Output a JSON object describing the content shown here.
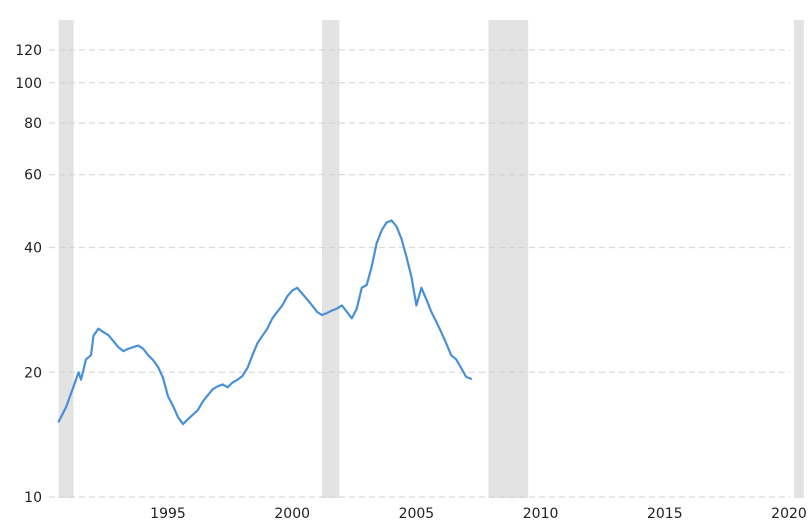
{
  "chart_data": {
    "type": "line",
    "title": "",
    "xlabel": "",
    "ylabel": "",
    "y_scale": "log",
    "xlim": [
      1990.6,
      2020.6
    ],
    "ylim": [
      10,
      135
    ],
    "grid": "horizontal dashed",
    "y_ticks": [
      {
        "value": 10,
        "label": "10"
      },
      {
        "value": 20,
        "label": "20"
      },
      {
        "value": 40,
        "label": "40"
      },
      {
        "value": 60,
        "label": "60"
      },
      {
        "value": 80,
        "label": "80"
      },
      {
        "value": 100,
        "label": "100"
      },
      {
        "value": 120,
        "label": "120"
      }
    ],
    "x_ticks": [
      {
        "value": 1995,
        "label": "1995"
      },
      {
        "value": 2000,
        "label": "2000"
      },
      {
        "value": 2005,
        "label": "2005"
      },
      {
        "value": 2010,
        "label": "2010"
      },
      {
        "value": 2015,
        "label": "2015"
      },
      {
        "value": 2020,
        "label": "2020"
      }
    ],
    "recessions": [
      {
        "start": 1990.6,
        "end": 1991.2
      },
      {
        "start": 2001.2,
        "end": 2001.9
      },
      {
        "start": 2007.9,
        "end": 2009.5
      },
      {
        "start": 2020.2,
        "end": 2020.6
      }
    ],
    "colors": {
      "line": "#4a90d6",
      "recession": "#e3e3e3",
      "grid": "#d2d2d2"
    },
    "series": [
      {
        "values": [
          [
            1990.6,
            15.2
          ],
          [
            1990.9,
            16.5
          ],
          [
            1991.2,
            18.5
          ],
          [
            1991.4,
            20.0
          ],
          [
            1991.5,
            19.2
          ],
          [
            1991.7,
            21.5
          ],
          [
            1991.9,
            22.0
          ],
          [
            1992.0,
            24.5
          ],
          [
            1992.2,
            25.5
          ],
          [
            1992.4,
            25.0
          ],
          [
            1992.6,
            24.6
          ],
          [
            1992.8,
            23.8
          ],
          [
            1993.0,
            23.0
          ],
          [
            1993.2,
            22.5
          ],
          [
            1993.4,
            22.8
          ],
          [
            1993.6,
            23.0
          ],
          [
            1993.8,
            23.2
          ],
          [
            1994.0,
            22.8
          ],
          [
            1994.2,
            22.0
          ],
          [
            1994.4,
            21.4
          ],
          [
            1994.6,
            20.6
          ],
          [
            1994.8,
            19.4
          ],
          [
            1995.0,
            17.5
          ],
          [
            1995.2,
            16.6
          ],
          [
            1995.4,
            15.6
          ],
          [
            1995.6,
            15.0
          ],
          [
            1995.8,
            15.4
          ],
          [
            1996.0,
            15.8
          ],
          [
            1996.2,
            16.2
          ],
          [
            1996.4,
            17.0
          ],
          [
            1996.6,
            17.6
          ],
          [
            1996.8,
            18.2
          ],
          [
            1997.0,
            18.5
          ],
          [
            1997.2,
            18.7
          ],
          [
            1997.4,
            18.4
          ],
          [
            1997.6,
            18.9
          ],
          [
            1997.8,
            19.2
          ],
          [
            1998.0,
            19.6
          ],
          [
            1998.2,
            20.5
          ],
          [
            1998.4,
            22.0
          ],
          [
            1998.6,
            23.5
          ],
          [
            1998.8,
            24.5
          ],
          [
            1999.0,
            25.5
          ],
          [
            1999.2,
            27.0
          ],
          [
            1999.4,
            28.0
          ],
          [
            1999.6,
            29.0
          ],
          [
            1999.8,
            30.5
          ],
          [
            2000.0,
            31.5
          ],
          [
            2000.2,
            32.0
          ],
          [
            2000.4,
            31.0
          ],
          [
            2000.6,
            30.0
          ],
          [
            2000.8,
            29.0
          ],
          [
            2001.0,
            28.0
          ],
          [
            2001.2,
            27.5
          ],
          [
            2001.4,
            27.8
          ],
          [
            2001.6,
            28.2
          ],
          [
            2001.8,
            28.5
          ],
          [
            2002.0,
            29.0
          ],
          [
            2002.2,
            28.0
          ],
          [
            2002.4,
            27.0
          ],
          [
            2002.6,
            28.5
          ],
          [
            2002.8,
            32.0
          ],
          [
            2003.0,
            32.5
          ],
          [
            2003.2,
            36.0
          ],
          [
            2003.4,
            41.0
          ],
          [
            2003.6,
            44.0
          ],
          [
            2003.8,
            46.0
          ],
          [
            2004.0,
            46.5
          ],
          [
            2004.2,
            45.0
          ],
          [
            2004.4,
            42.0
          ],
          [
            2004.6,
            38.0
          ],
          [
            2004.8,
            34.0
          ],
          [
            2005.0,
            29.0
          ],
          [
            2005.2,
            32.0
          ],
          [
            2005.4,
            30.0
          ],
          [
            2005.6,
            28.0
          ],
          [
            2005.8,
            26.5
          ],
          [
            2006.0,
            25.0
          ],
          [
            2006.2,
            23.5
          ],
          [
            2006.4,
            22.0
          ],
          [
            2006.6,
            21.5
          ],
          [
            2006.8,
            20.5
          ],
          [
            2007.0,
            19.5
          ],
          [
            2007.2,
            19.3
          ]
        ]
      }
    ]
  }
}
